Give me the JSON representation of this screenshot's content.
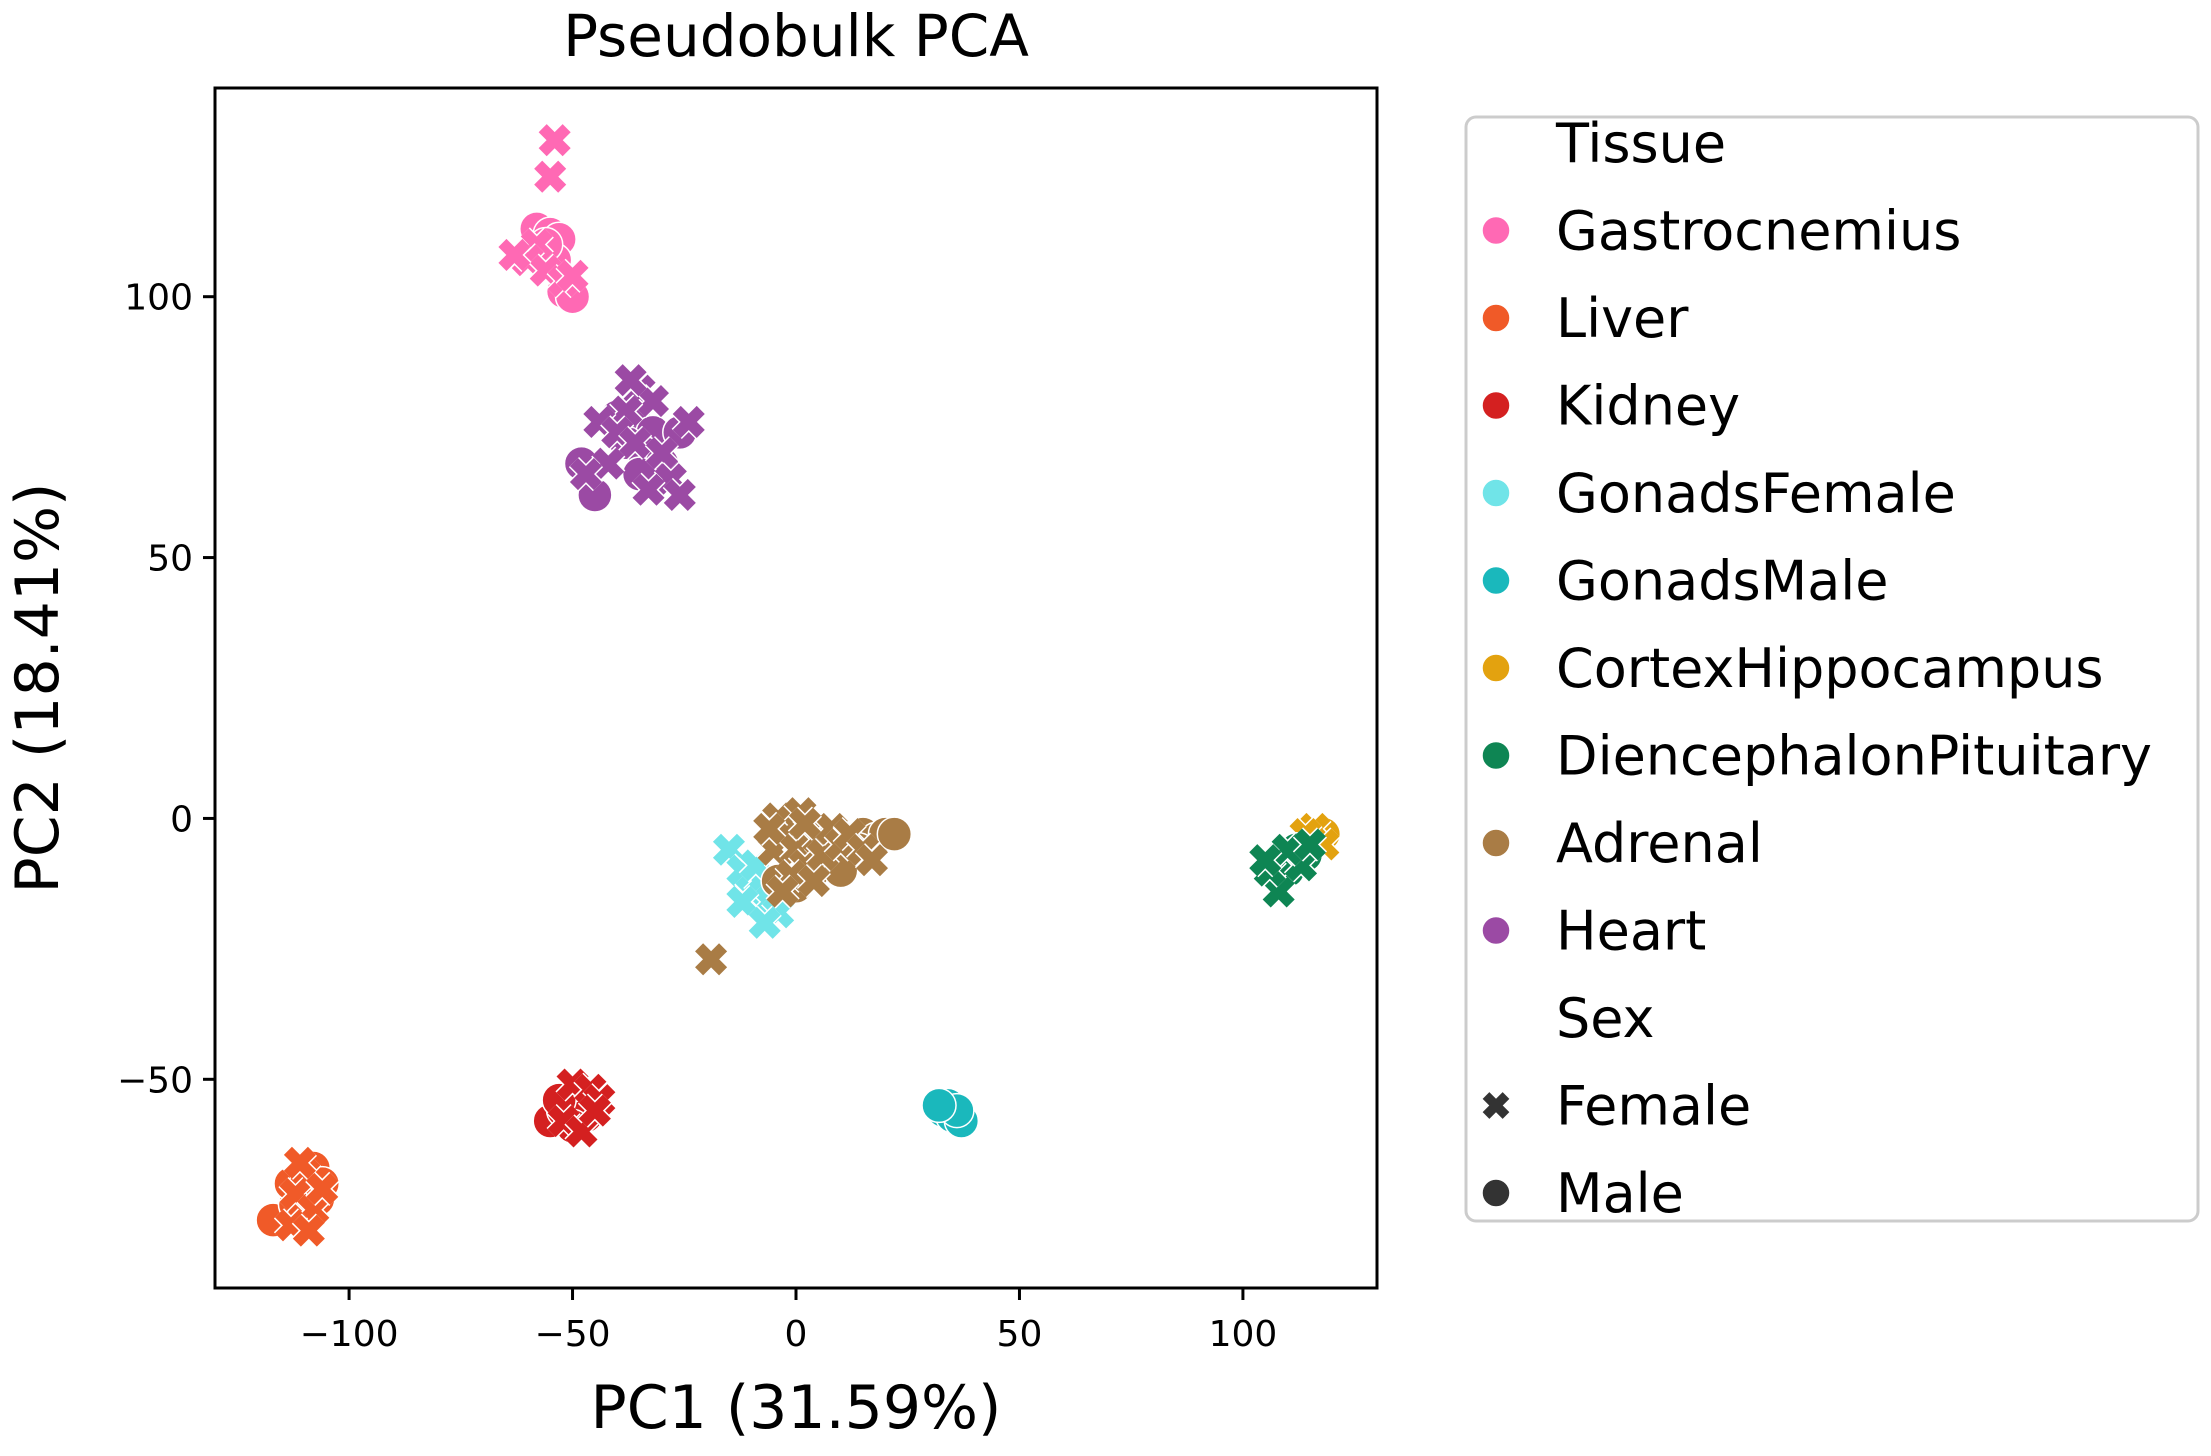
{
  "chart_data": {
    "type": "scatter",
    "title": "Pseudobulk PCA",
    "xlabel": "PC1 (31.59%)",
    "ylabel": "PC2 (18.41%)",
    "xlim": [
      -130,
      130
    ],
    "ylim": [
      -90,
      140
    ],
    "xticks": [
      -100,
      -50,
      0,
      50,
      100
    ],
    "yticks": [
      -50,
      0,
      50,
      100
    ],
    "xtick_labels": [
      "−100",
      "−50",
      "0",
      "50",
      "100"
    ],
    "ytick_labels": [
      "−50",
      "0",
      "50",
      "100"
    ],
    "grid": false,
    "legend": {
      "placement": "outside-right",
      "hue_title": "Tissue",
      "style_title": "Sex",
      "styles": [
        {
          "name": "Female",
          "marker": "x"
        },
        {
          "name": "Male",
          "marker": "o"
        }
      ]
    },
    "series": [
      {
        "name": "Gastrocnemius",
        "color": "#ff69b4",
        "female": [
          [
            -54,
            130
          ],
          [
            -55,
            123
          ],
          [
            -58,
            110
          ],
          [
            -60,
            107
          ],
          [
            -56,
            105
          ],
          [
            -52,
            103
          ],
          [
            -63,
            108
          ],
          [
            -50,
            104
          ]
        ],
        "male": [
          [
            -58,
            113
          ],
          [
            -55,
            112
          ],
          [
            -53,
            111
          ],
          [
            -57,
            108
          ],
          [
            -54,
            107
          ],
          [
            -52,
            101
          ],
          [
            -50,
            100
          ],
          [
            -56,
            110
          ]
        ]
      },
      {
        "name": "Liver",
        "color": "#f05a28",
        "female": [
          [
            -110,
            -68
          ],
          [
            -112,
            -72
          ],
          [
            -108,
            -75
          ],
          [
            -113,
            -78
          ],
          [
            -106,
            -71
          ],
          [
            -109,
            -79
          ],
          [
            -111,
            -66
          ]
        ],
        "male": [
          [
            -108,
            -67
          ],
          [
            -106,
            -70
          ],
          [
            -117,
            -77
          ],
          [
            -112,
            -74
          ],
          [
            -110,
            -76
          ],
          [
            -107,
            -73
          ],
          [
            -113,
            -70
          ]
        ]
      },
      {
        "name": "Kidney",
        "color": "#d42020",
        "female": [
          [
            -50,
            -51
          ],
          [
            -46,
            -52
          ],
          [
            -44,
            -54
          ],
          [
            -52,
            -58
          ],
          [
            -48,
            -60
          ],
          [
            -45,
            -56
          ]
        ],
        "male": [
          [
            -55,
            -58
          ],
          [
            -52,
            -56
          ],
          [
            -49,
            -55
          ],
          [
            -47,
            -57
          ],
          [
            -50,
            -59
          ],
          [
            -53,
            -54
          ]
        ]
      },
      {
        "name": "GonadsFemale",
        "color": "#70e4e8",
        "female": [
          [
            -15,
            -6
          ],
          [
            -12,
            -10
          ],
          [
            -10,
            -14
          ],
          [
            -8,
            -12
          ],
          [
            -6,
            -16
          ],
          [
            -4,
            -18
          ],
          [
            -12,
            -16
          ],
          [
            -9,
            -9
          ],
          [
            -7,
            -20
          ]
        ],
        "male": []
      },
      {
        "name": "GonadsMale",
        "color": "#1ab8bc",
        "female": [],
        "male": [
          [
            33,
            -56
          ],
          [
            35,
            -57
          ],
          [
            37,
            -58
          ],
          [
            34,
            -55
          ],
          [
            36,
            -56
          ],
          [
            32,
            -55
          ]
        ]
      },
      {
        "name": "CortexHippocampus",
        "color": "#e3a20f",
        "female": [
          [
            116,
            -2
          ],
          [
            118,
            -5
          ],
          [
            114,
            -3
          ]
        ],
        "male": [
          [
            116,
            -4
          ],
          [
            113,
            -6
          ],
          [
            118,
            -3
          ]
        ]
      },
      {
        "name": "DiencephalonPituitary",
        "color": "#0e8553",
        "female": [
          [
            108,
            -14
          ],
          [
            106,
            -10
          ],
          [
            113,
            -9
          ],
          [
            110,
            -6
          ],
          [
            115,
            -5
          ],
          [
            105,
            -8
          ]
        ],
        "male": [
          [
            109,
            -7
          ],
          [
            111,
            -9
          ],
          [
            113,
            -8
          ],
          [
            112,
            -6
          ],
          [
            110,
            -10
          ],
          [
            114,
            -7
          ]
        ]
      },
      {
        "name": "Adrenal",
        "color": "#a97c45",
        "female": [
          [
            -19,
            -27
          ],
          [
            -4,
            0
          ],
          [
            -2,
            -3
          ],
          [
            1,
            1
          ],
          [
            3,
            -2
          ],
          [
            -5,
            -6
          ],
          [
            0,
            -6
          ],
          [
            5,
            -4
          ],
          [
            2,
            -9
          ],
          [
            -1,
            -11
          ],
          [
            6,
            -7
          ],
          [
            8,
            -2
          ],
          [
            10,
            -5
          ],
          [
            4,
            -12
          ],
          [
            -3,
            -14
          ],
          [
            12,
            -3
          ],
          [
            15,
            -6
          ],
          [
            17,
            -8
          ],
          [
            -6,
            -2
          ],
          [
            2,
            -1
          ]
        ],
        "male": [
          [
            0,
            -2
          ],
          [
            3,
            -4
          ],
          [
            6,
            -3
          ],
          [
            9,
            -5
          ],
          [
            12,
            -4
          ],
          [
            15,
            -3
          ],
          [
            18,
            -4
          ],
          [
            20,
            -3
          ],
          [
            22,
            -3
          ],
          [
            14,
            -6
          ],
          [
            8,
            -8
          ],
          [
            4,
            -10
          ],
          [
            0,
            -13
          ],
          [
            -4,
            -12
          ],
          [
            10,
            -10
          ]
        ]
      },
      {
        "name": "Heart",
        "color": "#9b4aa4",
        "female": [
          [
            -35,
            82
          ],
          [
            -32,
            80
          ],
          [
            -38,
            78
          ],
          [
            -44,
            76
          ],
          [
            -40,
            74
          ],
          [
            -36,
            72
          ],
          [
            -30,
            70
          ],
          [
            -28,
            65
          ],
          [
            -33,
            63
          ],
          [
            -26,
            62
          ],
          [
            -42,
            68
          ],
          [
            -47,
            66
          ],
          [
            -24,
            76
          ],
          [
            -37,
            84
          ]
        ],
        "male": [
          [
            -40,
            77
          ],
          [
            -36,
            76
          ],
          [
            -32,
            74
          ],
          [
            -38,
            72
          ],
          [
            -34,
            70
          ],
          [
            -30,
            68
          ],
          [
            -35,
            66
          ],
          [
            -45,
            62
          ],
          [
            -48,
            68
          ],
          [
            -26,
            74
          ]
        ]
      }
    ]
  }
}
